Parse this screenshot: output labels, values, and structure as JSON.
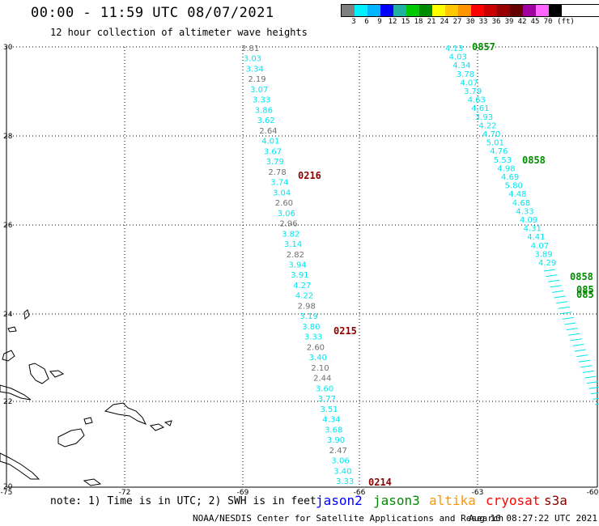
{
  "header": {
    "title": "00:00 - 11:59 UTC 08/07/2021",
    "subtitle": "12 hour collection of altimeter wave heights"
  },
  "legend": {
    "colors": [
      "#7f7f7f",
      "#00f0ff",
      "#00b4ff",
      "#0000ff",
      "#1fb0a0",
      "#00c800",
      "#008c00",
      "#ffff00",
      "#ffc800",
      "#ff9600",
      "#ff0000",
      "#c80000",
      "#960000",
      "#640000",
      "#a000a0",
      "#ff64ff",
      "#000000"
    ],
    "labels": [
      "3",
      "6",
      "9",
      "12",
      "15",
      "18",
      "21",
      "24",
      "27",
      "30",
      "33",
      "36",
      "39",
      "42",
      "45",
      "70",
      "(ft)"
    ]
  },
  "map": {
    "lat_labels": [
      "30",
      "28",
      "26",
      "24",
      "22",
      "20"
    ],
    "lon_labels": [
      "-75",
      "-72",
      "-69",
      "-66",
      "-63",
      "-60"
    ],
    "track_colors": {
      "cyan": "#00e6f0",
      "gray": "#6e6e6e",
      "green": "#008c00",
      "darkred": "#8b0000"
    },
    "passes": [
      {
        "time": "0216",
        "color": "darkred"
      },
      {
        "time": "0215",
        "color": "darkred"
      },
      {
        "time": "0214",
        "color": "darkred"
      },
      {
        "time": "0857",
        "color": "green"
      },
      {
        "time": "0858",
        "color": "green"
      },
      {
        "time": "0858",
        "color": "green"
      },
      {
        "time": "085",
        "color": "green"
      },
      {
        "time": "085",
        "color": "green"
      }
    ],
    "track1": [
      {
        "v": "2.81",
        "c": "gray"
      },
      {
        "v": "3.03",
        "c": "cyan"
      },
      {
        "v": "3.34",
        "c": "cyan"
      },
      {
        "v": "2.19",
        "c": "gray"
      },
      {
        "v": "3.07",
        "c": "cyan"
      },
      {
        "v": "3.33",
        "c": "cyan"
      },
      {
        "v": "3.86",
        "c": "cyan"
      },
      {
        "v": "3.62",
        "c": "cyan"
      },
      {
        "v": "2.64",
        "c": "gray"
      },
      {
        "v": "4.01",
        "c": "cyan"
      },
      {
        "v": "3.67",
        "c": "cyan"
      },
      {
        "v": "3.79",
        "c": "cyan"
      },
      {
        "v": "2.78",
        "c": "gray"
      },
      {
        "v": "3.74",
        "c": "cyan"
      },
      {
        "v": "3.04",
        "c": "cyan"
      },
      {
        "v": "2.60",
        "c": "gray"
      },
      {
        "v": "3.06",
        "c": "cyan"
      },
      {
        "v": "2.96",
        "c": "gray"
      },
      {
        "v": "3.82",
        "c": "cyan"
      },
      {
        "v": "3.14",
        "c": "cyan"
      },
      {
        "v": "2.82",
        "c": "gray"
      },
      {
        "v": "3.94",
        "c": "cyan"
      },
      {
        "v": "3.91",
        "c": "cyan"
      },
      {
        "v": "4.27",
        "c": "cyan"
      },
      {
        "v": "4.22",
        "c": "cyan"
      },
      {
        "v": "2.98",
        "c": "gray"
      },
      {
        "v": "3.19",
        "c": "cyan"
      },
      {
        "v": "3.80",
        "c": "cyan"
      },
      {
        "v": "3.33",
        "c": "cyan"
      },
      {
        "v": "2.60",
        "c": "gray"
      },
      {
        "v": "3.40",
        "c": "cyan"
      },
      {
        "v": "2.10",
        "c": "gray"
      },
      {
        "v": "2.44",
        "c": "gray"
      },
      {
        "v": "3.60",
        "c": "cyan"
      },
      {
        "v": "3.77",
        "c": "cyan"
      },
      {
        "v": "3.51",
        "c": "cyan"
      },
      {
        "v": "4.34",
        "c": "cyan"
      },
      {
        "v": "3.68",
        "c": "cyan"
      },
      {
        "v": "3.90",
        "c": "cyan"
      },
      {
        "v": "2.47",
        "c": "gray"
      },
      {
        "v": "3.06",
        "c": "cyan"
      },
      {
        "v": "3.40",
        "c": "cyan"
      },
      {
        "v": "3.33",
        "c": "cyan"
      }
    ],
    "track2": [
      "4.13",
      "4.03",
      "4.34",
      "3.78",
      "4.07",
      "3.79",
      "4.63",
      "4.61",
      "3.93",
      "4.22",
      "4.70",
      "5.01",
      "4.76",
      "5.53",
      "4.98",
      "4.69",
      "5.80",
      "4.48",
      "4.68",
      "4.33",
      "4.09",
      "4.31",
      "4.41",
      "4.07",
      "3.89",
      "4.29"
    ]
  },
  "footer": {
    "note": "note: 1) Time is in UTC; 2) SWH is in feet",
    "satellites": [
      {
        "name": "jason2",
        "color": "#0000ff"
      },
      {
        "name": "jason3",
        "color": "#008c00"
      },
      {
        "name": "altika",
        "color": "#ff9600"
      },
      {
        "name": "cryosat",
        "color": "#ff0000"
      },
      {
        "name": "s3a",
        "color": "#8b0000"
      }
    ],
    "credit": "NOAA/NESDIS Center for Satellite Applications and Research",
    "timestamp": "Aug 10 08:27:22 UTC 2021"
  }
}
